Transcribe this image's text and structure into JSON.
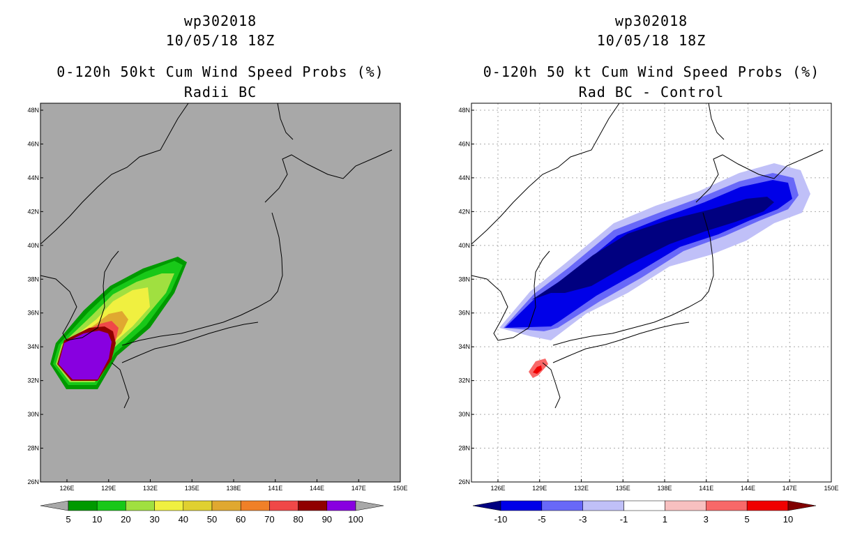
{
  "left": {
    "header": {
      "line1": "wp302018",
      "line2": "10/05/18 18Z",
      "line3": "0-120h 50kt Cum Wind Speed Probs (%)",
      "line4": "Radii BC"
    },
    "background_color": "#a8a8a8",
    "colorbar": {
      "labels": [
        "5",
        "10",
        "20",
        "30",
        "40",
        "50",
        "60",
        "70",
        "80",
        "90",
        "100"
      ],
      "colors": [
        "#009900",
        "#18c818",
        "#a0e040",
        "#f0f040",
        "#e0d030",
        "#e0a830",
        "#f08028",
        "#f04848",
        "#900000",
        "#8800e0"
      ],
      "under_color": "#a8a8a8",
      "over_color": "#a8a8a8"
    },
    "contours": [
      {
        "level": "5",
        "color": "#009900"
      },
      {
        "level": "10",
        "color": "#18c818"
      },
      {
        "level": "20",
        "color": "#a0e040"
      },
      {
        "level": "30",
        "color": "#f0f040"
      },
      {
        "level": "50",
        "color": "#e0a830"
      },
      {
        "level": "70",
        "color": "#f04848"
      },
      {
        "level": "90",
        "color": "#900000"
      },
      {
        "level": "100",
        "color": "#8800e0"
      }
    ]
  },
  "right": {
    "header": {
      "line1": "wp302018",
      "line2": "10/05/18 18Z",
      "line3": "0-120h 50 kt Cum Wind Speed Probs (%)",
      "line4": "Rad BC - Control"
    },
    "background_color": "#ffffff",
    "colorbar": {
      "labels": [
        "-10",
        "-5",
        "-3",
        "-1",
        "1",
        "3",
        "5",
        "10"
      ],
      "colors": [
        "#0000e8",
        "#6868f8",
        "#c0c0f8",
        "#ffffff",
        "#f8c0c0",
        "#f86868",
        "#f00000"
      ],
      "under_color": "#000080",
      "over_color": "#800000"
    },
    "contours": [
      {
        "level": "-1",
        "color": "#c0c0f8"
      },
      {
        "level": "-3",
        "color": "#6868f8"
      },
      {
        "level": "-5",
        "color": "#0000e8"
      },
      {
        "level": "-10",
        "color": "#000080"
      },
      {
        "level": "3",
        "color": "#f86868"
      },
      {
        "level": "5",
        "color": "#f00000"
      }
    ]
  },
  "map": {
    "lat_labels": [
      "48N",
      "46N",
      "44N",
      "42N",
      "40N",
      "38N",
      "36N",
      "34N",
      "32N",
      "30N",
      "28N",
      "26N"
    ],
    "lon_labels": [
      "126E",
      "129E",
      "132E",
      "135E",
      "138E",
      "141E",
      "144E",
      "147E",
      "150E"
    ]
  }
}
